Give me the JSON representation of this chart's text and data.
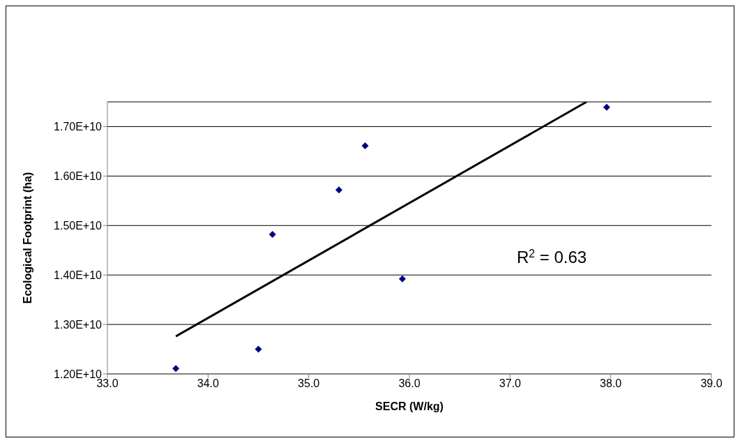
{
  "chart_data": {
    "type": "scatter",
    "xlabel": "SECR (W/kg)",
    "ylabel": "Ecological Footprint (ha)",
    "xlim": [
      33,
      39
    ],
    "xticks": [
      {
        "value": 33,
        "label": "33.0"
      },
      {
        "value": 34,
        "label": "34.0"
      },
      {
        "value": 35,
        "label": "35.0"
      },
      {
        "value": 36,
        "label": "36.0"
      },
      {
        "value": 37,
        "label": "37.0"
      },
      {
        "value": 38,
        "label": "38.0"
      },
      {
        "value": 39,
        "label": "39.0"
      }
    ],
    "ylim": [
      12000000000,
      17500000000
    ],
    "yticks": [
      {
        "value": 12000000000,
        "label": "1.20E+10"
      },
      {
        "value": 13000000000,
        "label": "1.30E+10"
      },
      {
        "value": 14000000000,
        "label": "1.40E+10"
      },
      {
        "value": 15000000000,
        "label": "1.50E+10"
      },
      {
        "value": 16000000000,
        "label": "1.60E+10"
      },
      {
        "value": 17000000000,
        "label": "1.70E+10"
      }
    ],
    "grid": "y",
    "marker": "diamond",
    "series": [
      {
        "color": "#000080",
        "x": [
          33.68,
          34.5,
          34.64,
          35.3,
          35.56,
          35.93,
          37.96
        ],
        "values": [
          12110000000,
          12500000000,
          14820000000,
          15720000000,
          16610000000,
          13920000000,
          17390000000
        ]
      },
      {
        "type": "line",
        "color": "#000000",
        "marker": "none",
        "x": [
          33.68,
          37.76
        ],
        "values": [
          12760000000,
          17500000000
        ]
      }
    ],
    "annotations": [
      "R$^{2}$ = 0.63"
    ]
  }
}
